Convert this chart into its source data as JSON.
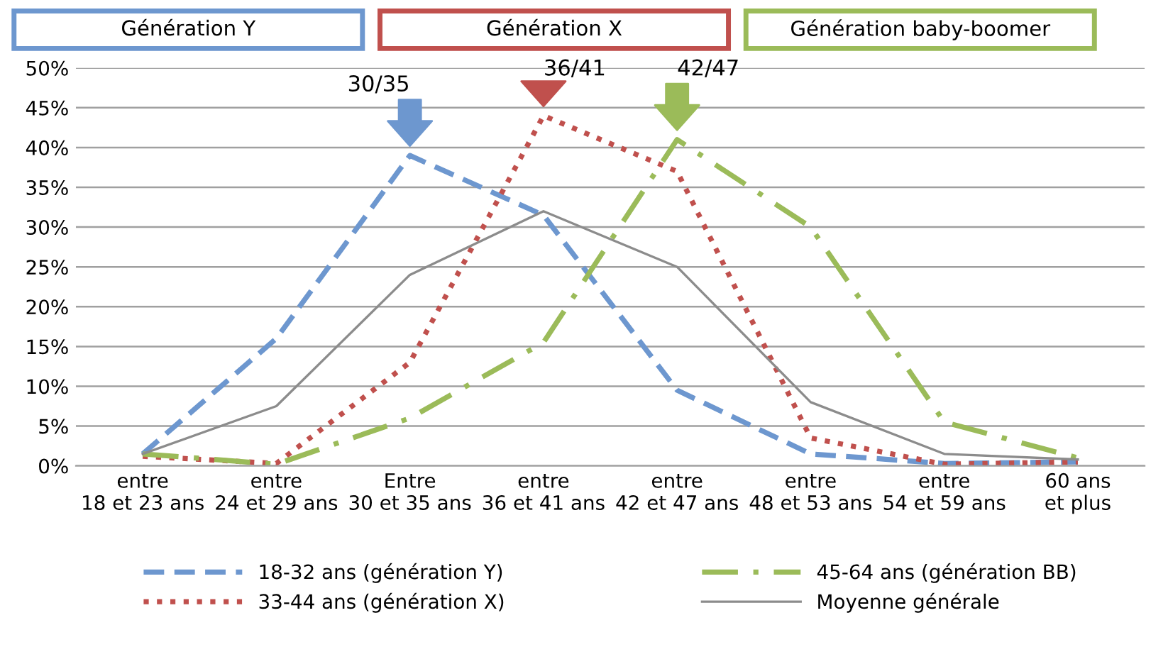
{
  "chart_data": {
    "type": "line",
    "categories": [
      "entre\n18 et 23 ans",
      "entre\n24 et 29 ans",
      "Entre\n30 et 35 ans",
      "entre\n36 et 41 ans",
      "entre\n42 et 47 ans",
      "entre\n48 et 53 ans",
      "entre\n54 et 59 ans",
      "60 ans\net plus"
    ],
    "series": [
      {
        "name": "18-32 ans (génération Y)",
        "color": "#6d97cf",
        "line_style": "dashed",
        "values": [
          1.5,
          16,
          39,
          31.5,
          9.5,
          1.5,
          0.3,
          0.5
        ]
      },
      {
        "name": "33-44 ans (génération X)",
        "color": "#c0504d",
        "line_style": "dotted",
        "values": [
          1.2,
          0.3,
          13,
          44,
          37,
          3.5,
          0.2,
          0.5
        ]
      },
      {
        "name": "45-64 ans (génération BB)",
        "color": "#9bbb59",
        "line_style": "dashdot",
        "values": [
          1.5,
          0.2,
          6,
          15.5,
          41,
          30,
          5.5,
          1
        ]
      },
      {
        "name": "Moyenne générale",
        "color": "#8c8c8c",
        "line_style": "solid",
        "values": [
          1.5,
          7.5,
          24,
          32,
          25,
          8,
          1.5,
          0.8
        ]
      }
    ],
    "ylim": [
      0,
      50
    ],
    "yticks": [
      {
        "value": 0,
        "label": "0%"
      },
      {
        "value": 5,
        "label": "5%"
      },
      {
        "value": 10,
        "label": "10%"
      },
      {
        "value": 15,
        "label": "15%"
      },
      {
        "value": 20,
        "label": "20%"
      },
      {
        "value": 25,
        "label": "25%"
      },
      {
        "value": 30,
        "label": "30%"
      },
      {
        "value": 35,
        "label": "35%"
      },
      {
        "value": 40,
        "label": "40%"
      },
      {
        "value": 45,
        "label": "45%"
      },
      {
        "value": 50,
        "label": "50%"
      }
    ],
    "grid": "y",
    "legend": "bottom",
    "annotations": [
      "Génération Y",
      "Génération X",
      "Génération baby-boomer",
      {
        "text": "30/35",
        "x": "Entre\n30 et 35 ans",
        "y": 39
      },
      {
        "text": "36/41",
        "x": "entre\n36 et 41 ans",
        "y": 44
      },
      {
        "text": "42/47",
        "x": "entre\n42 et 47 ans",
        "y": 41
      }
    ]
  }
}
